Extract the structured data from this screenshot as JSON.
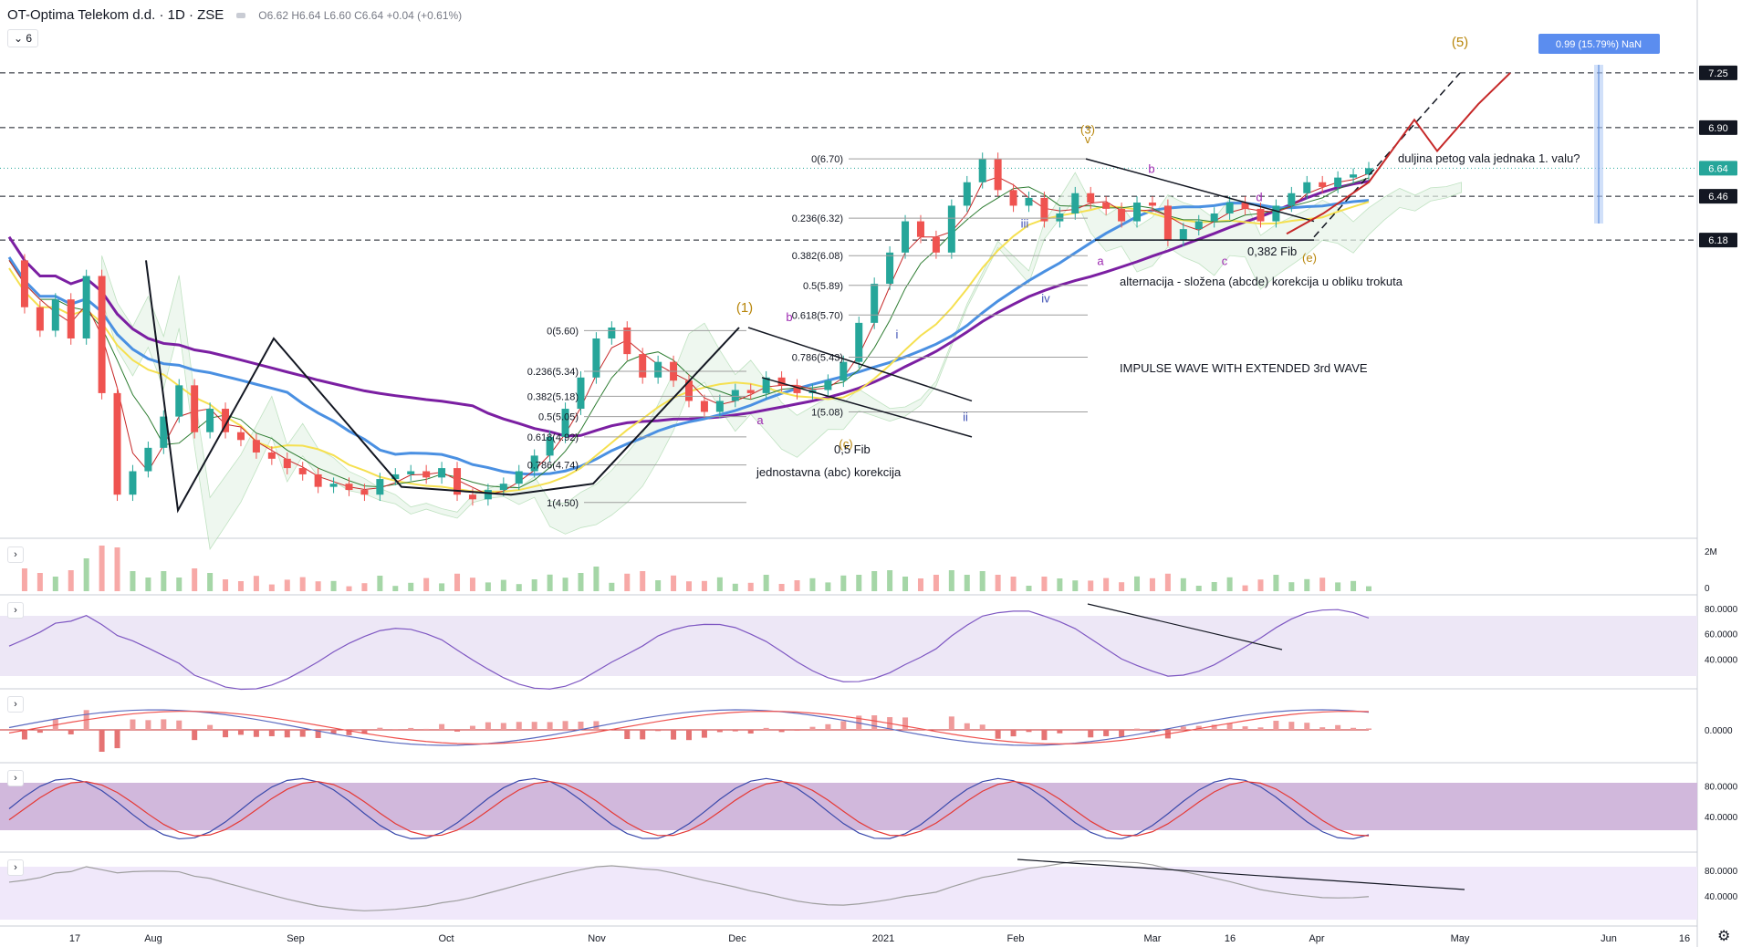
{
  "header": {
    "symbol": "OT-Optima Telekom d.d. · 1D · ZSE",
    "open": "O6.62",
    "high": "H6.64",
    "low": "L6.60",
    "close": "C6.64 +0.04 (+0.61%)",
    "indicator_count": "6"
  },
  "colors": {
    "up": "#26a69a",
    "down": "#ef5350",
    "ma_purple": "#7b1fa2",
    "ma_blue": "#4a90e2",
    "ma_yellow": "#f5e050",
    "wave_label": "#b8860b",
    "accent": "#2962ff"
  },
  "chart_data": [
    {
      "type": "line",
      "panel": "price",
      "title": "",
      "ylim": [
        4.3,
        7.6
      ],
      "x_ticks": [
        "17",
        "Aug",
        "Sep",
        "Oct",
        "Nov",
        "Dec",
        "2021",
        "Feb",
        "Mar",
        "16",
        "Apr",
        "May",
        "Jun",
        "16"
      ],
      "price_axis_labels": [
        "7.25",
        "6.90",
        "6.64",
        "6.46",
        "6.18"
      ],
      "horizontal_levels": [
        7.25,
        6.9,
        6.46,
        6.18
      ],
      "last_price": 6.64,
      "series": [
        {
          "name": "",
          "values": [
            6.05,
            5.75,
            5.6,
            5.8,
            5.55,
            5.95,
            5.2,
            4.55,
            4.7,
            4.85,
            5.05,
            5.25,
            4.95,
            5.1,
            4.95,
            4.9,
            4.82,
            4.78,
            4.72,
            4.68,
            4.6,
            4.62,
            4.58,
            4.55,
            4.65,
            4.68,
            4.7,
            4.66,
            4.72,
            4.55,
            4.52,
            4.58,
            4.62,
            4.7,
            4.8,
            4.92,
            5.1,
            5.3,
            5.55,
            5.62,
            5.45,
            5.3,
            5.4,
            5.28,
            5.15,
            5.08,
            5.15,
            5.22,
            5.2,
            5.3,
            5.25,
            5.2,
            5.22,
            5.28,
            5.4,
            5.65,
            5.9,
            6.1,
            6.3,
            6.2,
            6.1,
            6.4,
            6.55,
            6.7,
            6.5,
            6.4,
            6.45,
            6.3,
            6.35,
            6.48,
            6.42,
            6.38,
            6.3,
            6.42,
            6.4,
            6.18,
            6.25,
            6.3,
            6.35,
            6.42,
            6.38,
            6.3,
            6.4,
            6.48,
            6.55,
            6.52,
            6.58,
            6.6,
            6.64
          ]
        }
      ],
      "fib_left": [
        "0(5.60)",
        "0.236(5.34)",
        "0.382(5.18)",
        "0.5(5.05)",
        "0.618(4.92)",
        "0.786(4.74)",
        "1(4.50)"
      ],
      "fib_right": [
        "0(6.70)",
        "0.236(6.32)",
        "0.382(6.08)",
        "0.5(5.89)",
        "0.618(5.70)",
        "0.786(5.43)",
        "1(5.08)"
      ],
      "wave_labels": {
        "w1": "(1)",
        "w5": "(5)",
        "w3": "(3)",
        "wa": "a",
        "wb": "b",
        "wc": "c",
        "wd": "d",
        "we": "(e)",
        "wi": "i",
        "wii": "ii",
        "wiii": "iii",
        "wiv": "iv",
        "wv": "v",
        "wa2": "a",
        "wb2": "b",
        "wc2": "c",
        "wc3": "(c)"
      },
      "annotations": {
        "measure": "0.99 (15.79%) NaN",
        "fifth_wave_q": "duljina petog vala jednaka 1. valu?",
        "triangle": "alternacija - složena (abcde) korekcija u obliku trokuta",
        "impulse": "IMPULSE WAVE WITH EXTENDED 3rd WAVE",
        "fib382": "0,382 Fib",
        "fib05": "0,5 Fib",
        "simple_corr": "jednostavna (abc) korekcija"
      }
    },
    {
      "type": "bar",
      "panel": "volume",
      "axis_labels": [
        "2M",
        "0"
      ],
      "ylim": [
        0,
        2000000
      ]
    },
    {
      "type": "line",
      "panel": "rsi",
      "axis_labels": [
        "80.0000",
        "60.0000",
        "40.0000"
      ],
      "ylim": [
        20,
        85
      ]
    },
    {
      "type": "line",
      "panel": "macd",
      "axis_labels": [
        "0.0000"
      ]
    },
    {
      "type": "line",
      "panel": "stochastic",
      "axis_labels": [
        "80.0000",
        "40.0000"
      ],
      "ylim": [
        0,
        100
      ]
    },
    {
      "type": "line",
      "panel": "oscillator",
      "axis_labels": [
        "80.0000",
        "40.0000"
      ],
      "ylim": [
        0,
        100
      ]
    }
  ]
}
